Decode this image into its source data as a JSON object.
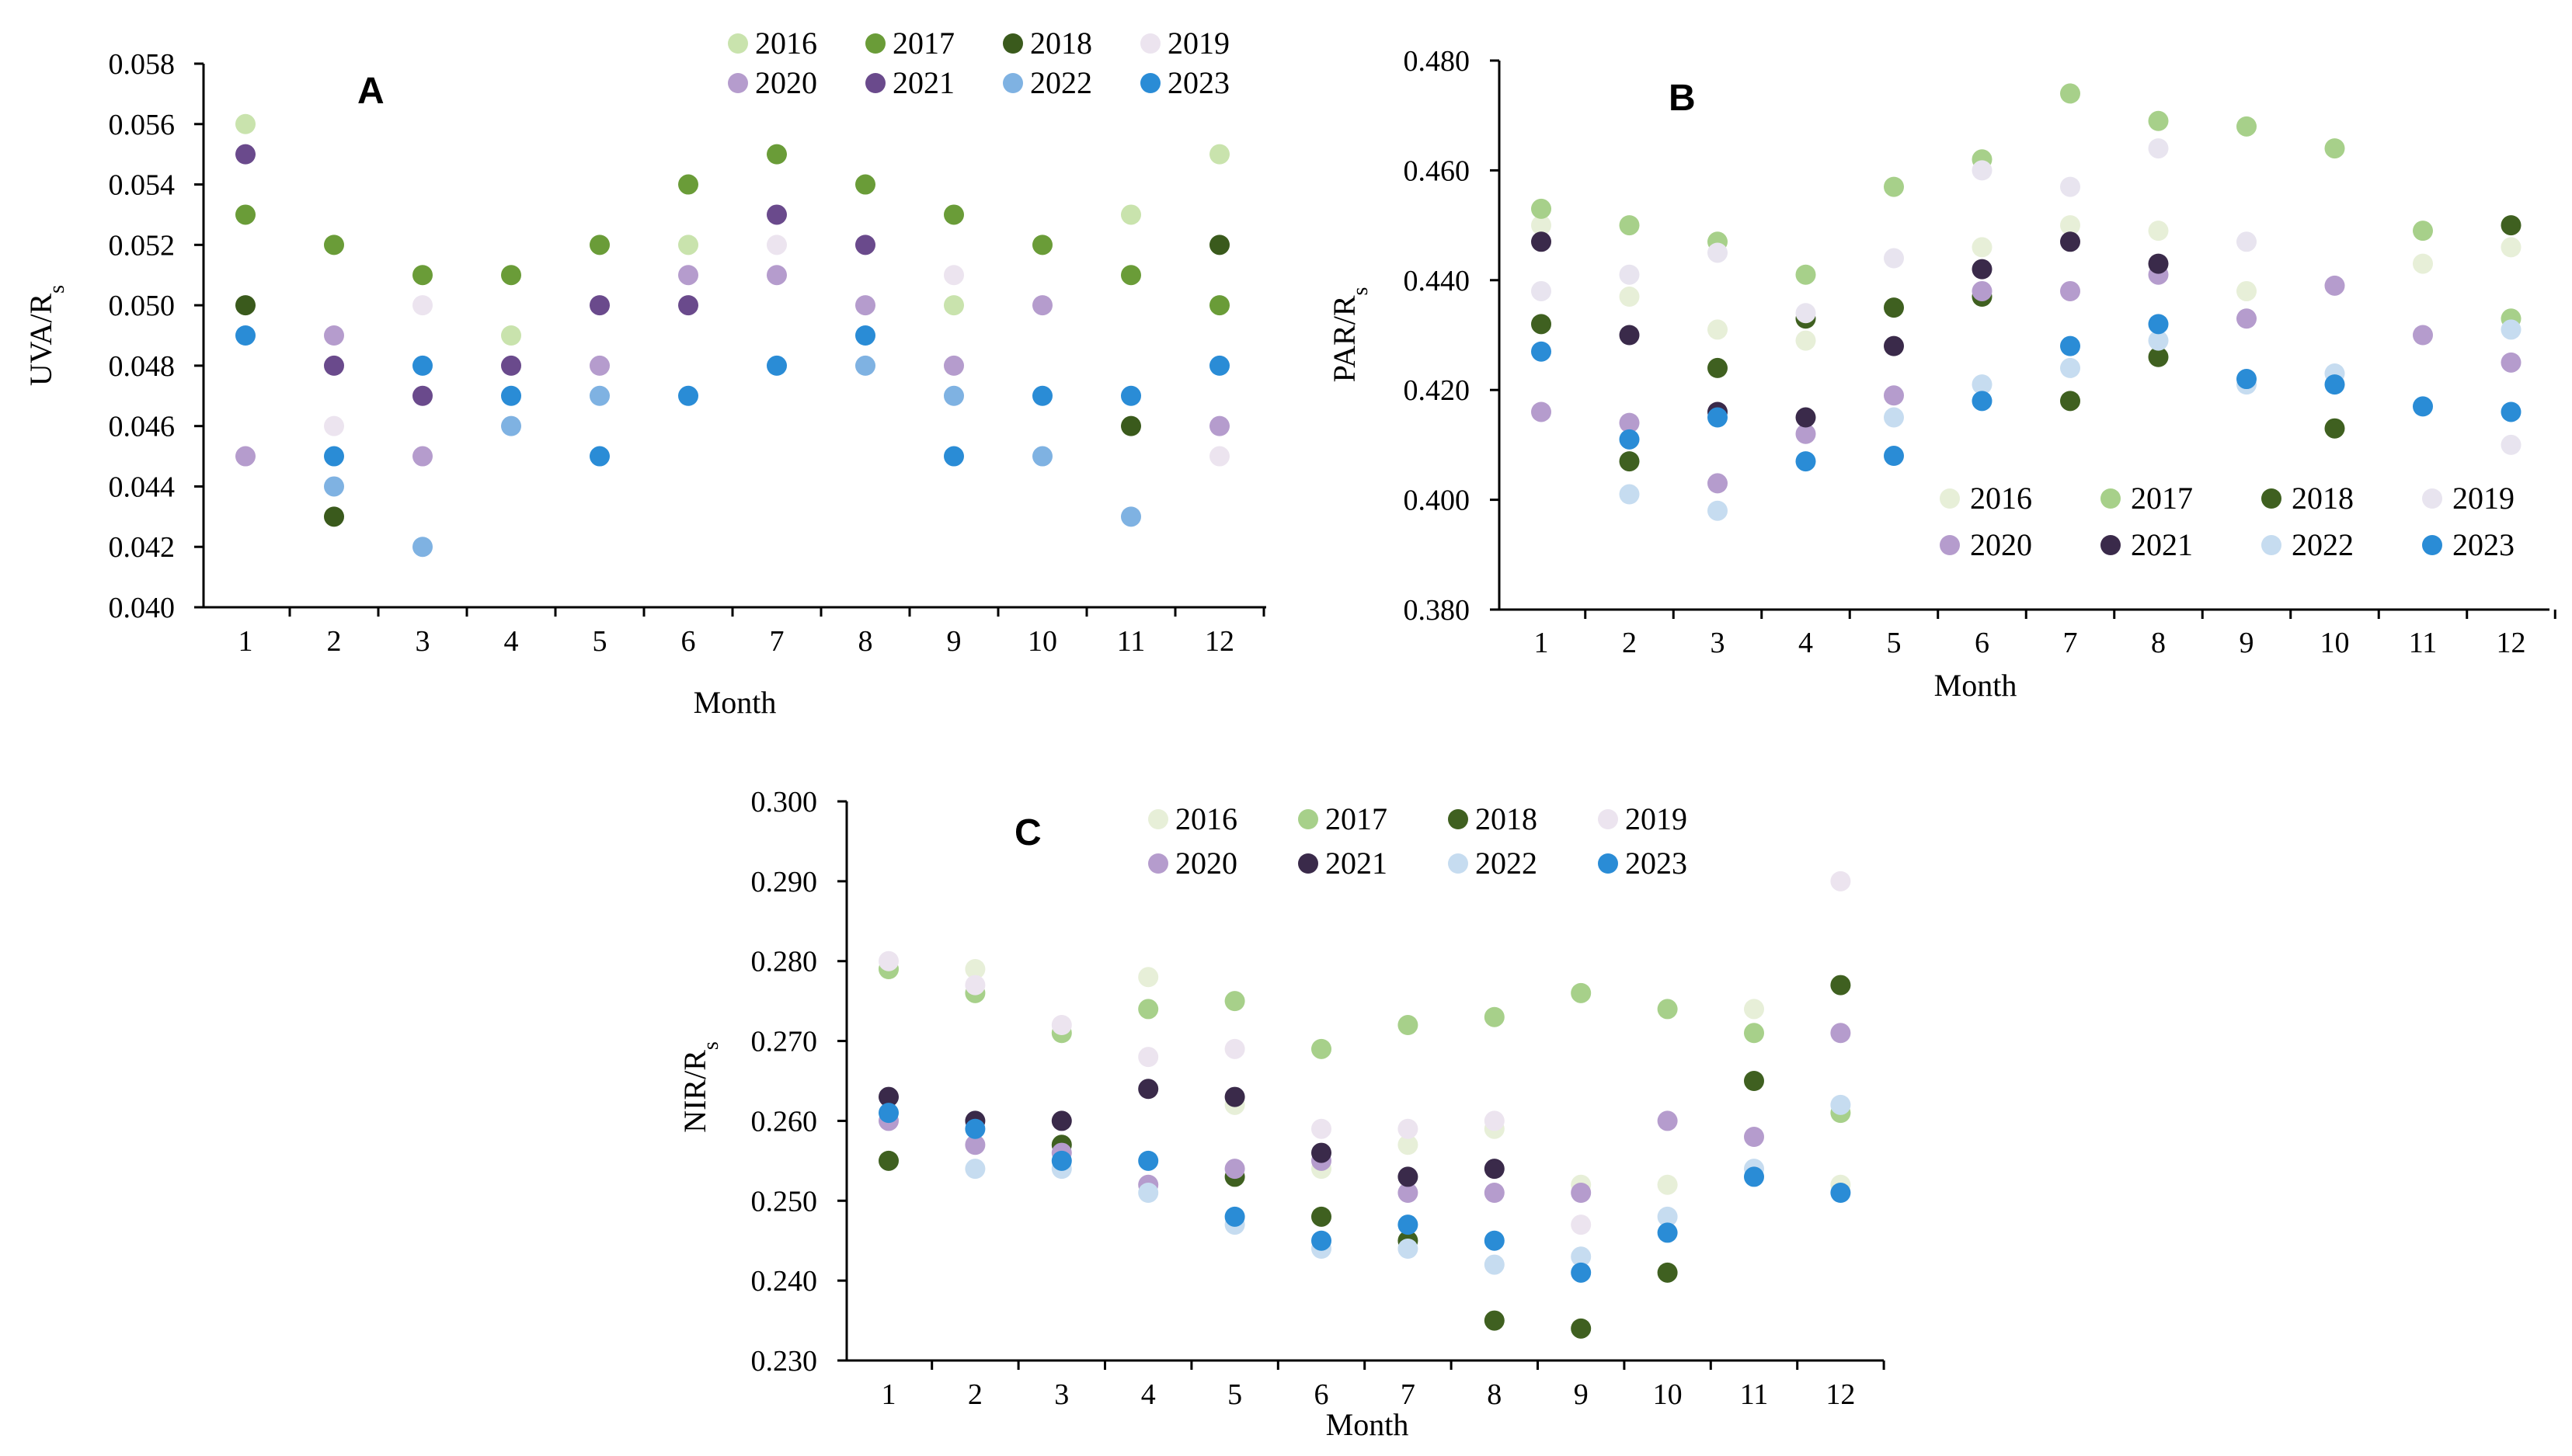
{
  "figure_description_label": "Monthly ratios of UVA, PAR and NIR to global solar radiation, 2016-2023",
  "years": [
    "2016",
    "2017",
    "2018",
    "2019",
    "2020",
    "2021",
    "2022",
    "2023"
  ],
  "colors": {
    "A": [
      "#c9e3ad",
      "#6a9c38",
      "#3a5a1c",
      "#ece4ef",
      "#b59ccd",
      "#6a4a8c",
      "#7fb2e2",
      "#2a8cd6"
    ],
    "B": [
      "#e7efd8",
      "#a7d08a",
      "#3f6020",
      "#e8e4ef",
      "#b59ccd",
      "#3a2a4a",
      "#c6dcf0",
      "#2a8cd6"
    ],
    "C": [
      "#e7efd8",
      "#a7d08a",
      "#3f6020",
      "#ece4ef",
      "#b59ccd",
      "#3a2a4a",
      "#c6dcf0",
      "#2a8cd6"
    ]
  },
  "chart_data": [
    {
      "panel": "A",
      "type": "scatter",
      "title": "A",
      "xlabel": "Month",
      "ylabel_main": "UVA/R",
      "ylabel_sub": "s",
      "x": [
        1,
        2,
        3,
        4,
        5,
        6,
        7,
        8,
        9,
        10,
        11,
        12
      ],
      "ylim": [
        0.04,
        0.058
      ],
      "yticks": [
        "0.040",
        "0.042",
        "0.044",
        "0.046",
        "0.048",
        "0.050",
        "0.052",
        "0.054",
        "0.056",
        "0.058"
      ],
      "xticks": [
        "1",
        "2",
        "3",
        "4",
        "5",
        "6",
        "7",
        "8",
        "9",
        "10",
        "11",
        "12"
      ],
      "legend_position": "top",
      "series": [
        {
          "name": "2016",
          "values": [
            0.056,
            null,
            null,
            0.049,
            null,
            0.052,
            null,
            null,
            0.05,
            null,
            0.053,
            0.055
          ]
        },
        {
          "name": "2017",
          "values": [
            0.053,
            0.052,
            0.051,
            0.051,
            0.052,
            0.054,
            0.055,
            0.054,
            0.053,
            0.052,
            0.051,
            0.05
          ]
        },
        {
          "name": "2018",
          "values": [
            0.05,
            0.043,
            null,
            null,
            null,
            null,
            null,
            null,
            null,
            null,
            0.046,
            0.052
          ]
        },
        {
          "name": "2019",
          "values": [
            null,
            0.046,
            0.05,
            null,
            null,
            null,
            0.052,
            null,
            0.051,
            null,
            null,
            0.045
          ]
        },
        {
          "name": "2020",
          "values": [
            0.045,
            0.049,
            0.045,
            null,
            0.048,
            0.051,
            0.051,
            0.05,
            0.048,
            0.05,
            null,
            0.046
          ]
        },
        {
          "name": "2021",
          "values": [
            0.055,
            0.048,
            0.047,
            0.048,
            0.05,
            0.05,
            0.053,
            0.052,
            null,
            null,
            null,
            null
          ]
        },
        {
          "name": "2022",
          "values": [
            null,
            0.044,
            0.042,
            0.046,
            0.047,
            null,
            null,
            0.048,
            0.047,
            0.045,
            0.043,
            null
          ]
        },
        {
          "name": "2023",
          "values": [
            0.049,
            0.045,
            0.048,
            0.047,
            0.045,
            0.047,
            0.048,
            0.049,
            0.045,
            0.047,
            0.047,
            0.048
          ]
        }
      ]
    },
    {
      "panel": "B",
      "type": "scatter",
      "title": "B",
      "xlabel": "Month",
      "ylabel_main": "PAR/R",
      "ylabel_sub": "s",
      "x": [
        1,
        2,
        3,
        4,
        5,
        6,
        7,
        8,
        9,
        10,
        11,
        12
      ],
      "ylim": [
        0.38,
        0.48
      ],
      "yticks": [
        "0.380",
        "0.400",
        "0.420",
        "0.440",
        "0.460",
        "0.480"
      ],
      "xticks": [
        "1",
        "2",
        "3",
        "4",
        "5",
        "6",
        "7",
        "8",
        "9",
        "10",
        "11",
        "12"
      ],
      "legend_position": "bottom-right",
      "series": [
        {
          "name": "2016",
          "values": [
            0.45,
            0.437,
            0.431,
            0.429,
            null,
            0.446,
            0.45,
            0.449,
            0.438,
            null,
            0.443,
            0.446
          ]
        },
        {
          "name": "2017",
          "values": [
            0.453,
            0.45,
            0.447,
            0.441,
            0.457,
            0.462,
            0.474,
            0.469,
            0.468,
            0.464,
            0.449,
            0.433
          ]
        },
        {
          "name": "2018",
          "values": [
            0.432,
            0.407,
            0.424,
            0.433,
            0.435,
            0.437,
            0.418,
            0.426,
            null,
            0.413,
            null,
            0.45
          ]
        },
        {
          "name": "2019",
          "values": [
            0.438,
            0.441,
            0.445,
            0.434,
            0.444,
            0.46,
            0.457,
            0.464,
            0.447,
            null,
            null,
            0.41
          ]
        },
        {
          "name": "2020",
          "values": [
            0.416,
            0.414,
            0.403,
            0.412,
            0.419,
            0.438,
            0.438,
            0.441,
            0.433,
            0.439,
            0.43,
            0.425
          ]
        },
        {
          "name": "2021",
          "values": [
            0.447,
            0.43,
            0.416,
            0.415,
            0.428,
            0.442,
            0.447,
            0.443,
            null,
            null,
            null,
            null
          ]
        },
        {
          "name": "2022",
          "values": [
            null,
            0.401,
            0.398,
            null,
            0.415,
            0.421,
            0.424,
            0.429,
            0.421,
            0.423,
            null,
            0.431
          ]
        },
        {
          "name": "2023",
          "values": [
            0.427,
            0.411,
            0.415,
            0.407,
            0.408,
            0.418,
            0.428,
            0.432,
            0.422,
            0.421,
            0.417,
            0.416
          ]
        }
      ]
    },
    {
      "panel": "C",
      "type": "scatter",
      "title": "C",
      "xlabel": "Month",
      "ylabel_main": "NIR/R",
      "ylabel_sub": "s",
      "x": [
        1,
        2,
        3,
        4,
        5,
        6,
        7,
        8,
        9,
        10,
        11,
        12
      ],
      "ylim": [
        0.23,
        0.3
      ],
      "yticks": [
        "0.230",
        "0.240",
        "0.250",
        "0.260",
        "0.270",
        "0.280",
        "0.290",
        "0.300"
      ],
      "xticks": [
        "1",
        "2",
        "3",
        "4",
        "5",
        "6",
        "7",
        "8",
        "9",
        "10",
        "11",
        "12"
      ],
      "legend_position": "top",
      "series": [
        {
          "name": "2016",
          "values": [
            0.279,
            0.279,
            null,
            0.278,
            0.262,
            0.254,
            0.257,
            0.259,
            0.252,
            0.252,
            0.274,
            0.252
          ]
        },
        {
          "name": "2017",
          "values": [
            0.279,
            0.276,
            0.271,
            0.274,
            0.275,
            0.269,
            0.272,
            0.273,
            0.276,
            0.274,
            0.271,
            0.261
          ]
        },
        {
          "name": "2018",
          "values": [
            0.255,
            null,
            0.257,
            null,
            0.253,
            0.248,
            0.245,
            0.235,
            0.234,
            0.241,
            0.265,
            0.277
          ]
        },
        {
          "name": "2019",
          "values": [
            0.28,
            0.277,
            0.272,
            0.268,
            0.269,
            0.259,
            0.259,
            0.26,
            0.247,
            null,
            null,
            0.29
          ]
        },
        {
          "name": "2020",
          "values": [
            0.26,
            0.257,
            0.256,
            0.252,
            0.254,
            0.255,
            0.251,
            0.251,
            0.251,
            0.26,
            0.258,
            0.271
          ]
        },
        {
          "name": "2021",
          "values": [
            0.263,
            0.26,
            0.26,
            0.264,
            0.263,
            0.256,
            0.253,
            0.254,
            null,
            null,
            null,
            null
          ]
        },
        {
          "name": "2022",
          "values": [
            null,
            0.254,
            0.254,
            0.251,
            0.247,
            0.244,
            0.244,
            0.242,
            0.243,
            0.248,
            0.254,
            0.262
          ]
        },
        {
          "name": "2023",
          "values": [
            0.261,
            0.259,
            0.255,
            0.255,
            0.248,
            0.245,
            0.247,
            0.245,
            0.241,
            0.246,
            0.253,
            0.251
          ]
        }
      ]
    }
  ]
}
